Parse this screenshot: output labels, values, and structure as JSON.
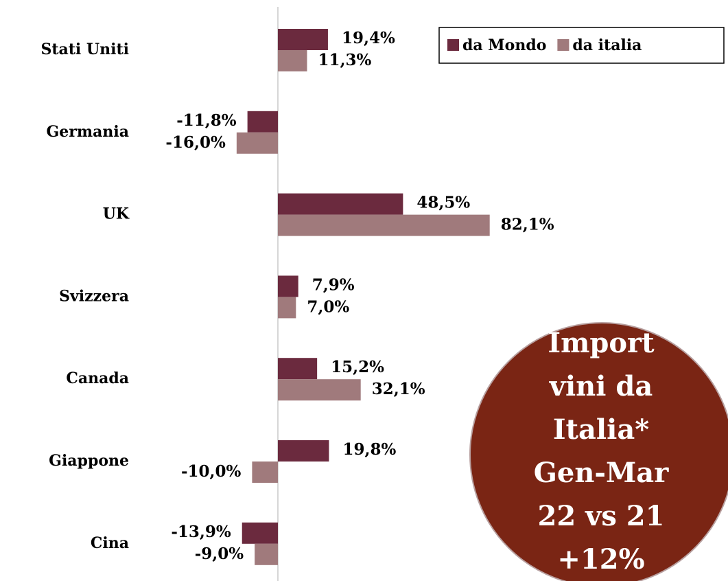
{
  "chart_data": {
    "type": "hbar",
    "categories": [
      "Stati Uniti",
      "Germania",
      "UK",
      "Svizzera",
      "Canada",
      "Giappone",
      "Cina"
    ],
    "series": [
      {
        "name": "da Mondo",
        "color": "#6b2a3e",
        "values": [
          19.4,
          -11.8,
          48.5,
          7.9,
          15.2,
          19.8,
          -13.9
        ],
        "value_labels": [
          "19,4%",
          "-11,8%",
          "48,5%",
          "7,9%",
          "15,2%",
          "19,8%",
          "-13,9%"
        ]
      },
      {
        "name": "da italia",
        "color": "#a07a7c",
        "values": [
          11.3,
          -16.0,
          82.1,
          7.0,
          32.1,
          -10.0,
          -9.0
        ],
        "value_labels": [
          "11,3%",
          "-16,0%",
          "82,1%",
          "7,0%",
          "32,1%",
          "-10,0%",
          "-9,0%"
        ]
      }
    ],
    "legend": "top-right",
    "annotation": {
      "lines": [
        "Import",
        "vini da",
        "Italia*",
        "Gen-Mar",
        "22 vs 21",
        "+12%"
      ],
      "color": "#7a2514"
    }
  }
}
